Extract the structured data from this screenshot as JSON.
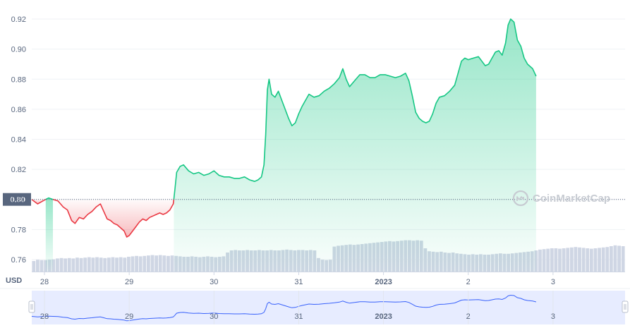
{
  "chart_data": {
    "type": "area",
    "currency_label": "USD",
    "reference_value": 0.8,
    "reference_label": "0.80",
    "watermark": "CoinMarketCap",
    "y_ticks": [
      "0.76",
      "0.78",
      "0.80",
      "0.82",
      "0.84",
      "0.86",
      "0.88",
      "0.90",
      "0.92"
    ],
    "ylim": [
      0.752,
      0.928
    ],
    "x_ticks": [
      {
        "label": "28",
        "x": 0.5,
        "bold": false
      },
      {
        "label": "29",
        "x": 1.5,
        "bold": false
      },
      {
        "label": "30",
        "x": 2.5,
        "bold": false
      },
      {
        "label": "31",
        "x": 3.5,
        "bold": false
      },
      {
        "label": "2023",
        "x": 4.5,
        "bold": true
      },
      {
        "label": "2",
        "x": 5.5,
        "bold": false
      },
      {
        "label": "3",
        "x": 6.5,
        "bold": false
      }
    ],
    "xlim": [
      0.35,
      7.35
    ],
    "colors": {
      "up": "#16c784",
      "down": "#ea3943",
      "volume": "#cfd6e4",
      "navigator": "#3861fb"
    },
    "series": [
      {
        "values": [
          [
            0.35,
            0.8
          ],
          [
            0.42,
            0.797
          ],
          [
            0.48,
            0.799
          ],
          [
            0.55,
            0.801
          ],
          [
            0.6,
            0.8
          ],
          [
            0.66,
            0.799
          ],
          [
            0.72,
            0.795
          ],
          [
            0.77,
            0.793
          ],
          [
            0.82,
            0.786
          ],
          [
            0.86,
            0.784
          ],
          [
            0.91,
            0.788
          ],
          [
            0.96,
            0.787
          ],
          [
            1.01,
            0.79
          ],
          [
            1.06,
            0.792
          ],
          [
            1.11,
            0.795
          ],
          [
            1.16,
            0.797
          ],
          [
            1.2,
            0.792
          ],
          [
            1.24,
            0.787
          ],
          [
            1.28,
            0.786
          ],
          [
            1.32,
            0.784
          ],
          [
            1.36,
            0.783
          ],
          [
            1.4,
            0.781
          ],
          [
            1.44,
            0.779
          ],
          [
            1.47,
            0.775
          ],
          [
            1.5,
            0.776
          ],
          [
            1.54,
            0.779
          ],
          [
            1.58,
            0.782
          ],
          [
            1.62,
            0.785
          ],
          [
            1.66,
            0.787
          ],
          [
            1.7,
            0.786
          ],
          [
            1.74,
            0.788
          ],
          [
            1.78,
            0.789
          ],
          [
            1.82,
            0.79
          ],
          [
            1.86,
            0.791
          ],
          [
            1.9,
            0.79
          ],
          [
            1.94,
            0.791
          ],
          [
            1.98,
            0.793
          ],
          [
            2.02,
            0.797
          ],
          [
            2.04,
            0.807
          ],
          [
            2.06,
            0.818
          ],
          [
            2.1,
            0.822
          ],
          [
            2.14,
            0.823
          ],
          [
            2.2,
            0.819
          ],
          [
            2.26,
            0.817
          ],
          [
            2.32,
            0.818
          ],
          [
            2.38,
            0.816
          ],
          [
            2.44,
            0.817
          ],
          [
            2.5,
            0.819
          ],
          [
            2.56,
            0.816
          ],
          [
            2.62,
            0.815
          ],
          [
            2.68,
            0.815
          ],
          [
            2.74,
            0.814
          ],
          [
            2.8,
            0.814
          ],
          [
            2.86,
            0.815
          ],
          [
            2.92,
            0.813
          ],
          [
            2.98,
            0.812
          ],
          [
            3.02,
            0.813
          ],
          [
            3.06,
            0.815
          ],
          [
            3.09,
            0.823
          ],
          [
            3.11,
            0.843
          ],
          [
            3.13,
            0.873
          ],
          [
            3.15,
            0.88
          ],
          [
            3.18,
            0.87
          ],
          [
            3.22,
            0.868
          ],
          [
            3.26,
            0.872
          ],
          [
            3.3,
            0.866
          ],
          [
            3.34,
            0.86
          ],
          [
            3.38,
            0.854
          ],
          [
            3.42,
            0.849
          ],
          [
            3.46,
            0.851
          ],
          [
            3.5,
            0.857
          ],
          [
            3.54,
            0.862
          ],
          [
            3.58,
            0.866
          ],
          [
            3.62,
            0.87
          ],
          [
            3.68,
            0.868
          ],
          [
            3.74,
            0.869
          ],
          [
            3.8,
            0.872
          ],
          [
            3.86,
            0.874
          ],
          [
            3.92,
            0.877
          ],
          [
            3.98,
            0.881
          ],
          [
            4.02,
            0.887
          ],
          [
            4.06,
            0.88
          ],
          [
            4.1,
            0.875
          ],
          [
            4.16,
            0.879
          ],
          [
            4.22,
            0.883
          ],
          [
            4.28,
            0.883
          ],
          [
            4.34,
            0.881
          ],
          [
            4.4,
            0.881
          ],
          [
            4.46,
            0.883
          ],
          [
            4.52,
            0.883
          ],
          [
            4.58,
            0.882
          ],
          [
            4.64,
            0.881
          ],
          [
            4.7,
            0.882
          ],
          [
            4.76,
            0.884
          ],
          [
            4.8,
            0.879
          ],
          [
            4.84,
            0.869
          ],
          [
            4.88,
            0.858
          ],
          [
            4.92,
            0.854
          ],
          [
            4.96,
            0.852
          ],
          [
            5.0,
            0.851
          ],
          [
            5.04,
            0.852
          ],
          [
            5.08,
            0.857
          ],
          [
            5.12,
            0.864
          ],
          [
            5.16,
            0.868
          ],
          [
            5.22,
            0.869
          ],
          [
            5.28,
            0.872
          ],
          [
            5.34,
            0.876
          ],
          [
            5.38,
            0.884
          ],
          [
            5.42,
            0.892
          ],
          [
            5.46,
            0.894
          ],
          [
            5.5,
            0.893
          ],
          [
            5.56,
            0.894
          ],
          [
            5.62,
            0.895
          ],
          [
            5.66,
            0.892
          ],
          [
            5.7,
            0.889
          ],
          [
            5.74,
            0.89
          ],
          [
            5.78,
            0.894
          ],
          [
            5.82,
            0.898
          ],
          [
            5.86,
            0.899
          ],
          [
            5.9,
            0.896
          ],
          [
            5.94,
            0.904
          ],
          [
            5.97,
            0.916
          ],
          [
            6.0,
            0.92
          ],
          [
            6.04,
            0.918
          ],
          [
            6.08,
            0.906
          ],
          [
            6.12,
            0.902
          ],
          [
            6.16,
            0.894
          ],
          [
            6.2,
            0.89
          ],
          [
            6.26,
            0.887
          ],
          [
            6.3,
            0.882
          ]
        ]
      }
    ],
    "volume": [
      0.25,
      0.28,
      0.27,
      0.27,
      0.28,
      0.29,
      0.31,
      0.32,
      0.31,
      0.32,
      0.31,
      0.33,
      0.32,
      0.33,
      0.34,
      0.33,
      0.34,
      0.33,
      0.32,
      0.33,
      0.34,
      0.33,
      0.34,
      0.33,
      0.35,
      0.36,
      0.37,
      0.36,
      0.37,
      0.38,
      0.39,
      0.38,
      0.39,
      0.38,
      0.37,
      0.38,
      0.37,
      0.36,
      0.35,
      0.35,
      0.36,
      0.35,
      0.34,
      0.35,
      0.36,
      0.35,
      0.34,
      0.35,
      0.36,
      0.45,
      0.5,
      0.51,
      0.5,
      0.5,
      0.51,
      0.5,
      0.5,
      0.51,
      0.5,
      0.5,
      0.51,
      0.5,
      0.5,
      0.51,
      0.52,
      0.51,
      0.5,
      0.51,
      0.51,
      0.5,
      0.51,
      0.5,
      0.32,
      0.28,
      0.27,
      0.28,
      0.59,
      0.61,
      0.62,
      0.63,
      0.64,
      0.63,
      0.64,
      0.65,
      0.66,
      0.67,
      0.68,
      0.69,
      0.7,
      0.71,
      0.72,
      0.71,
      0.72,
      0.73,
      0.74,
      0.74,
      0.73,
      0.74,
      0.73,
      0.55,
      0.48,
      0.47,
      0.46,
      0.47,
      0.45,
      0.44,
      0.45,
      0.43,
      0.42,
      0.41,
      0.4,
      0.41,
      0.4,
      0.41,
      0.4,
      0.4,
      0.41,
      0.42,
      0.43,
      0.42,
      0.42,
      0.43,
      0.44,
      0.45,
      0.46,
      0.47,
      0.48,
      0.5,
      0.52,
      0.53,
      0.54,
      0.55,
      0.55,
      0.54,
      0.55,
      0.56,
      0.57,
      0.58,
      0.57,
      0.56,
      0.55,
      0.54,
      0.55,
      0.56,
      0.57,
      0.58,
      0.6,
      0.62,
      0.61,
      0.6
    ],
    "navigator_ticks": [
      "28",
      "29",
      "30",
      "31",
      "2023",
      "2",
      "3"
    ]
  }
}
